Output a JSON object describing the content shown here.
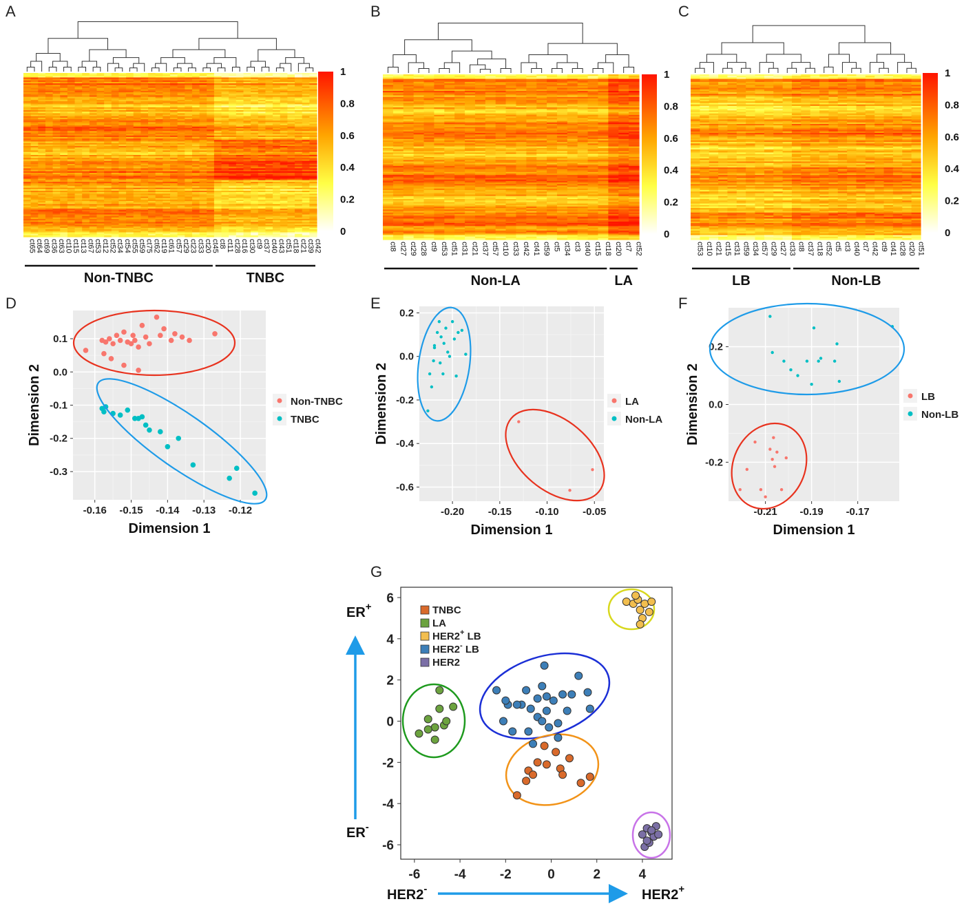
{
  "panels": {
    "A": {
      "letter": "A",
      "columns": [
        "ct65",
        "ct64",
        "ct69",
        "ct36",
        "ct63",
        "ct10",
        "ct15",
        "ct13",
        "ct67",
        "ct53",
        "ct12",
        "ct52",
        "ct34",
        "ct54",
        "ct55",
        "ct59",
        "ct75",
        "ct62",
        "ct19",
        "ct61",
        "ct57",
        "ct29",
        "ct23",
        "ct33",
        "ct20",
        "ct45",
        "ct8",
        "ct11",
        "ct28",
        "ct16",
        "ct30",
        "ct9",
        "ct37",
        "ct40",
        "ct43",
        "ct51",
        "ct18",
        "ct21",
        "ct39",
        "ct42"
      ],
      "groups": [
        {
          "label": "Non-TNBC",
          "from": 0,
          "to": 25
        },
        {
          "label": "TNBC",
          "from": 26,
          "to": 39
        }
      ],
      "colorbar": [
        "1",
        "0.8",
        "0.6",
        "0.4",
        "0.2",
        "0"
      ]
    },
    "B": {
      "letter": "B",
      "columns": [
        "ct8",
        "ct27",
        "ct29",
        "ct28",
        "ct9",
        "ct53",
        "ct51",
        "ct31",
        "ct21",
        "ct37",
        "ct57",
        "ct10",
        "ct33",
        "ct42",
        "ct41",
        "ct59",
        "ct5",
        "ct34",
        "ct3",
        "ct40",
        "ct15",
        "ct18",
        "ct20",
        "ct7",
        "ct52"
      ],
      "groups": [
        {
          "label": "Non-LA",
          "from": 0,
          "to": 21
        },
        {
          "label": "LA",
          "from": 22,
          "to": 24
        }
      ],
      "colorbar": [
        "1",
        "0.8",
        "0.6",
        "0.4",
        "0.2",
        "0"
      ]
    },
    "C": {
      "letter": "C",
      "columns": [
        "ct53",
        "ct10",
        "ct21",
        "ct15",
        "ct31",
        "ct59",
        "ct34",
        "ct57",
        "ct29",
        "ct27",
        "ct33",
        "ct8",
        "ct37",
        "ct18",
        "ct52",
        "ct5",
        "ct3",
        "ct40",
        "ct7",
        "ct42",
        "ct9",
        "ct41",
        "ct28",
        "ct20",
        "ct51"
      ],
      "groups": [
        {
          "label": "LB",
          "from": 0,
          "to": 10
        },
        {
          "label": "Non-LB",
          "from": 11,
          "to": 24
        }
      ],
      "colorbar": [
        "1",
        "0.8",
        "0.6",
        "0.4",
        "0.2",
        "0"
      ]
    },
    "D": {
      "letter": "D",
      "xlabel": "Dimension 1",
      "ylabel": "Dimension 2",
      "legend": [
        {
          "label": "Non-TNBC",
          "color": "#F8766D"
        },
        {
          "label": "TNBC",
          "color": "#00BFC4"
        }
      ]
    },
    "E": {
      "letter": "E",
      "xlabel": "Dimension 1",
      "ylabel": "Dimension 2",
      "legend": [
        {
          "label": "LA",
          "color": "#F8766D"
        },
        {
          "label": "Non-LA",
          "color": "#00BFC4"
        }
      ]
    },
    "F": {
      "letter": "F",
      "xlabel": "Dimension 1",
      "ylabel": "Dimension 2",
      "legend": [
        {
          "label": "LB",
          "color": "#F8766D"
        },
        {
          "label": "Non-LB",
          "color": "#00BFC4"
        }
      ]
    },
    "G": {
      "letter": "G",
      "legend": [
        {
          "label": "TNBC",
          "color": "#D96A2B"
        },
        {
          "label": "LA",
          "color": "#6CA33F"
        },
        {
          "label": "HER2",
          "sup": "+",
          "suffix": " LB",
          "color": "#F2BE4E"
        },
        {
          "label": "HER2",
          "sup": "-",
          "suffix": " LB",
          "color": "#3D7FB8"
        },
        {
          "label": "HER2",
          "color": "#7B6FA6"
        }
      ],
      "arrows": {
        "y_top": "ER",
        "y_top_sup": "+",
        "y_bottom": "ER",
        "y_bottom_sup": "-",
        "x_left": "HER2",
        "x_left_sup": "-",
        "x_right": "HER2",
        "x_right_sup": "+"
      }
    }
  },
  "chart_data": [
    {
      "panel": "A",
      "type": "heatmap",
      "title": "",
      "colorscale": [
        "#FFFFFF",
        "#FFFF44",
        "#FFA500",
        "#FF0000"
      ],
      "range": [
        0,
        1
      ],
      "ticks": [
        0,
        0.2,
        0.4,
        0.6,
        0.8,
        1
      ],
      "n_rows_approx": 120,
      "groups": [
        "Non-TNBC",
        "TNBC"
      ]
    },
    {
      "panel": "B",
      "type": "heatmap",
      "colorscale": [
        "#FFFFFF",
        "#FFFF44",
        "#FFA500",
        "#FF0000"
      ],
      "range": [
        0,
        1
      ],
      "ticks": [
        0,
        0.2,
        0.4,
        0.6,
        0.8,
        1
      ],
      "groups": [
        "Non-LA",
        "LA"
      ]
    },
    {
      "panel": "C",
      "type": "heatmap",
      "colorscale": [
        "#FFFFFF",
        "#FFFF44",
        "#FFA500",
        "#FF0000"
      ],
      "range": [
        0,
        1
      ],
      "ticks": [
        0,
        0.2,
        0.4,
        0.6,
        0.8,
        1
      ],
      "groups": [
        "LB",
        "Non-LB"
      ]
    },
    {
      "panel": "D",
      "type": "scatter",
      "xlabel": "Dimension 1",
      "ylabel": "Dimension 2",
      "xlim": [
        -0.166,
        -0.113
      ],
      "ylim": [
        -0.385,
        0.185
      ],
      "xticks": [
        -0.16,
        -0.15,
        -0.14,
        -0.13,
        -0.12
      ],
      "xtick_labels": [
        "-0.16",
        "-0.15",
        "-0.14",
        "-0.13",
        "-0.12"
      ],
      "yticks": [
        -0.3,
        -0.2,
        -0.1,
        0.0,
        0.1
      ],
      "ytick_labels": [
        "-0.3",
        "-0.2",
        "-0.1",
        "0.0",
        "0.1"
      ],
      "grid": true,
      "series": [
        {
          "name": "Non-TNBC",
          "color": "#F8766D",
          "x": [
            -0.1625,
            -0.158,
            -0.157,
            -0.156,
            -0.155,
            -0.154,
            -0.153,
            -0.152,
            -0.151,
            -0.15,
            -0.1495,
            -0.149,
            -0.148,
            -0.147,
            -0.146,
            -0.145,
            -0.143,
            -0.142,
            -0.141,
            -0.139,
            -0.138,
            -0.136,
            -0.134,
            -0.127,
            -0.1555,
            -0.152,
            -0.1575,
            -0.148
          ],
          "y": [
            0.065,
            0.095,
            0.09,
            0.1,
            0.085,
            0.11,
            0.095,
            0.12,
            0.09,
            0.085,
            0.11,
            0.095,
            0.005,
            0.14,
            0.105,
            0.085,
            0.165,
            0.11,
            0.13,
            0.095,
            0.115,
            0.105,
            0.095,
            0.115,
            0.04,
            0.02,
            0.055,
            0.075
          ]
        },
        {
          "name": "TNBC",
          "color": "#00BFC4",
          "x": [
            -0.158,
            -0.1575,
            -0.155,
            -0.153,
            -0.151,
            -0.149,
            -0.147,
            -0.146,
            -0.145,
            -0.142,
            -0.14,
            -0.137,
            -0.133,
            -0.123,
            -0.121,
            -0.116,
            -0.148,
            -0.157
          ],
          "y": [
            -0.11,
            -0.12,
            -0.125,
            -0.13,
            -0.115,
            -0.14,
            -0.135,
            -0.16,
            -0.175,
            -0.18,
            -0.225,
            -0.2,
            -0.28,
            -0.32,
            -0.29,
            -0.365,
            -0.14,
            -0.105
          ]
        }
      ],
      "ellipses": [
        {
          "cx": -0.1445,
          "cy": 0.095,
          "rx_data": 0.0235,
          "ry_data": 0.1,
          "color": "#E8321E"
        },
        {
          "cx": -0.1395,
          "cy": -0.24,
          "rx_data": 0.0275,
          "ry_data": 0.105,
          "color": "#1E9BE8",
          "tilted": true
        }
      ]
    },
    {
      "panel": "E",
      "type": "scatter",
      "xlabel": "Dimension 1",
      "ylabel": "Dimension 2",
      "xlim": [
        -0.235,
        -0.04
      ],
      "ylim": [
        -0.665,
        0.23
      ],
      "xticks": [
        -0.2,
        -0.15,
        -0.1,
        -0.05
      ],
      "xtick_labels": [
        "-0.20",
        "-0.15",
        "-0.10",
        "-0.05"
      ],
      "yticks": [
        -0.6,
        -0.4,
        -0.2,
        0.0,
        0.2
      ],
      "ytick_labels": [
        "-0.6",
        "-0.4",
        "-0.2",
        "0.0",
        "0.2"
      ],
      "grid": true,
      "series": [
        {
          "name": "LA",
          "color": "#F8766D",
          "x": [
            -0.13,
            -0.076,
            -0.052
          ],
          "y": [
            -0.3,
            -0.615,
            -0.52
          ]
        },
        {
          "name": "Non-LA",
          "color": "#00BFC4",
          "x": [
            -0.226,
            -0.222,
            -0.22,
            -0.219,
            -0.216,
            -0.214,
            -0.212,
            -0.21,
            -0.209,
            -0.207,
            -0.205,
            -0.203,
            -0.2,
            -0.198,
            -0.196,
            -0.194,
            -0.19,
            -0.186,
            -0.224,
            -0.219,
            -0.213
          ],
          "y": [
            -0.25,
            -0.14,
            -0.02,
            0.04,
            0.11,
            0.16,
            0.09,
            -0.08,
            0.06,
            0.13,
            0.02,
            0.0,
            0.16,
            0.08,
            -0.09,
            0.11,
            0.12,
            0.01,
            -0.08,
            0.05,
            -0.03
          ]
        }
      ]
    },
    {
      "panel": "F",
      "type": "scatter",
      "xlabel": "Dimension 1",
      "ylabel": "Dimension 2",
      "xlim": [
        -0.226,
        -0.152
      ],
      "ylim": [
        -0.335,
        0.335
      ],
      "xticks": [
        -0.21,
        -0.19,
        -0.17
      ],
      "xtick_labels": [
        "-0.21",
        "-0.19",
        "-0.17"
      ],
      "yticks": [
        -0.2,
        0.0,
        0.2
      ],
      "ytick_labels": [
        "-0.2",
        "0.0",
        "0.2"
      ],
      "grid": true,
      "series": [
        {
          "name": "LB",
          "color": "#F8766D",
          "x": [
            -0.221,
            -0.218,
            -0.2145,
            -0.212,
            -0.21,
            -0.208,
            -0.207,
            -0.2065,
            -0.206,
            -0.203,
            -0.201,
            -0.205
          ],
          "y": [
            -0.295,
            -0.225,
            -0.13,
            -0.295,
            -0.32,
            -0.155,
            -0.19,
            -0.115,
            -0.215,
            -0.295,
            -0.185,
            -0.165
          ]
        },
        {
          "name": "Non-LB",
          "color": "#00BFC4",
          "x": [
            -0.208,
            -0.202,
            -0.199,
            -0.196,
            -0.192,
            -0.19,
            -0.189,
            -0.187,
            -0.186,
            -0.18,
            -0.179,
            -0.178,
            -0.155,
            -0.207
          ],
          "y": [
            0.305,
            0.15,
            0.12,
            0.1,
            0.15,
            0.07,
            0.265,
            0.15,
            0.16,
            0.15,
            0.21,
            0.08,
            0.27,
            0.18
          ]
        }
      ]
    },
    {
      "panel": "G",
      "type": "scatter",
      "xlim": [
        -6.6,
        5.3
      ],
      "ylim": [
        -6.7,
        6.5
      ],
      "xticks": [
        -6,
        -4,
        -2,
        0,
        2,
        4
      ],
      "xtick_labels": [
        "-6",
        "-4",
        "-2",
        "0",
        "2",
        "4"
      ],
      "yticks": [
        -6,
        -4,
        -2,
        0,
        2,
        4,
        6
      ],
      "ytick_labels": [
        "-6",
        "-4",
        "-2",
        "0",
        "2",
        "4",
        "6"
      ],
      "grid": false,
      "series": [
        {
          "name": "TNBC",
          "color": "#D96A2B",
          "x": [
            -1.5,
            -1.1,
            -1.0,
            -0.6,
            -0.2,
            0.2,
            0.4,
            0.8,
            1.3,
            1.7,
            -0.3,
            0.5,
            -0.8
          ],
          "y": [
            -3.6,
            -2.9,
            -2.4,
            -2.0,
            -2.1,
            -1.5,
            -2.3,
            -1.8,
            -3.0,
            -2.7,
            -1.2,
            -2.6,
            -2.6
          ]
        },
        {
          "name": "LA",
          "color": "#6CA33F",
          "x": [
            -5.8,
            -5.4,
            -5.1,
            -5.1,
            -4.9,
            -4.7,
            -4.3,
            -4.9,
            -5.4,
            -4.6
          ],
          "y": [
            -0.6,
            0.1,
            -0.9,
            -0.3,
            1.5,
            -0.2,
            0.7,
            0.6,
            -0.4,
            0.0
          ]
        },
        {
          "name": "HER2+ LB",
          "color": "#F2BE4E",
          "x": [
            3.3,
            3.6,
            3.8,
            3.9,
            4.0,
            4.1,
            3.7,
            4.4,
            4.3,
            3.9
          ],
          "y": [
            5.8,
            5.7,
            5.9,
            5.4,
            5.0,
            5.7,
            6.1,
            5.8,
            5.3,
            4.7
          ]
        },
        {
          "name": "HER2- LB",
          "color": "#3D7FB8",
          "x": [
            -2.4,
            -1.9,
            -1.7,
            -1.3,
            -1.1,
            -0.9,
            -0.6,
            -0.4,
            -0.3,
            -0.2,
            0.1,
            0.3,
            0.5,
            0.7,
            1.2,
            1.6,
            1.7,
            -2.1,
            -1.0,
            -0.2,
            0.3,
            -0.8,
            -0.4,
            0.9,
            -1.5,
            -0.6,
            -0.1,
            -2.0
          ],
          "y": [
            1.5,
            0.8,
            -0.5,
            0.8,
            1.5,
            0.6,
            0.2,
            1.7,
            2.7,
            0.5,
            1.0,
            -0.1,
            1.3,
            0.5,
            2.2,
            1.4,
            0.6,
            0.0,
            -0.5,
            1.2,
            -0.8,
            -1.1,
            0.0,
            1.3,
            0.8,
            1.1,
            -0.3,
            1.0
          ]
        },
        {
          "name": "HER2",
          "color": "#7B6FA6",
          "x": [
            4.0,
            4.1,
            4.2,
            4.3,
            4.4,
            4.5,
            4.6,
            4.7,
            4.2,
            4.4
          ],
          "y": [
            -5.5,
            -6.1,
            -5.2,
            -5.9,
            -5.4,
            -5.6,
            -5.1,
            -5.5,
            -5.8,
            -5.3
          ]
        }
      ]
    }
  ]
}
